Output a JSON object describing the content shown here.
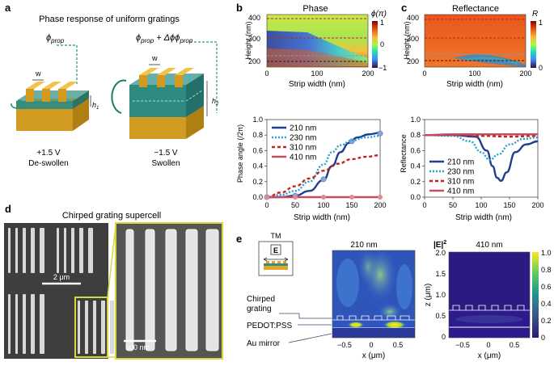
{
  "panels": {
    "a": {
      "letter": "a",
      "title": "Phase response of uniform gratings",
      "phi_prop": "ϕ",
      "phi_prop_sub": "prop",
      "delta_phi": " + Δϕ",
      "w_label": "w",
      "h1": "h",
      "h1_sub": "1",
      "h2": "h",
      "h2_sub": "2",
      "left_voltage": "+1.5 V",
      "left_state": "De-swollen",
      "right_voltage": "−1.5 V",
      "right_state": "Swollen",
      "colors": {
        "gold": "#e0a526",
        "gold_dark": "#b07f12",
        "pedot": "#3c8c7c",
        "arrow": "#2a8f88"
      }
    },
    "b": {
      "letter": "b",
      "heat_title": "Phase",
      "colorbar_label": "ϕ(π)",
      "colorbar_ticks": [
        "1",
        "0",
        "−1"
      ],
      "heat_ylabel": "Height (nm)",
      "heat_xlabel": "Strip width (nm)",
      "heat_xticks": [
        "0",
        "100",
        "200"
      ],
      "heat_yticks": [
        "400",
        "300",
        "200"
      ],
      "line_ylabel": "Phase angle (/2π)",
      "line_xlabel": "Strip width (nm)"
    },
    "c": {
      "letter": "c",
      "heat_title": "Reflectance",
      "colorbar_label": "R",
      "colorbar_ticks": [
        "1",
        "0"
      ],
      "heat_ylabel": "Height (nm)",
      "heat_xlabel": "Strip width (nm)",
      "heat_xticks": [
        "0",
        "100",
        "200"
      ],
      "heat_yticks": [
        "400",
        "300",
        "200"
      ],
      "line_ylabel": "Reflectance",
      "line_xlabel": "Strip width (nm)"
    },
    "d": {
      "letter": "d",
      "title": "Chirped grating supercell",
      "scale_left": "2 μm",
      "scale_right": "500 nm"
    },
    "e": {
      "letter": "e",
      "tm_label": "TM",
      "e_field": "E",
      "map_left_title": "210 nm",
      "map_right_title": "410 nm",
      "label_grating": "Chirped\ngrating",
      "label_grating_1": "Chirped",
      "label_grating_2": "grating",
      "label_pedot": "PEDOT:PSS",
      "label_mirror": "Au mirror",
      "xlabel": "x (μm)",
      "ylabel": "z (μm)",
      "xticks": [
        "−0.5",
        "0",
        "0.5"
      ],
      "yticks": [
        "2.0",
        "1.5",
        "1.0",
        "0.5",
        "0"
      ],
      "colorbar_label": "|E|",
      "colorbar_sup": "2",
      "colorbar_ticks": [
        "1.0",
        "0.8",
        "0.6",
        "0.4",
        "0.2",
        "0"
      ]
    }
  },
  "chart_data": [
    {
      "type": "line",
      "panel": "b",
      "xlabel": "Strip width (nm)",
      "ylabel": "Phase angle (/2π)",
      "xlim": [
        0,
        200
      ],
      "ylim": [
        0,
        1
      ],
      "xticks": [
        0,
        50,
        100,
        150,
        200
      ],
      "yticks": [
        0,
        0.2,
        0.4,
        0.6,
        0.8,
        1.0
      ],
      "legend": "top-left",
      "series": [
        {
          "name": "210 nm",
          "color": "#1f3f8f",
          "dash": "solid",
          "x": [
            0,
            25,
            50,
            75,
            100,
            115,
            130,
            145,
            160,
            180,
            200
          ],
          "y": [
            0.0,
            0.0,
            0.02,
            0.08,
            0.22,
            0.4,
            0.58,
            0.7,
            0.77,
            0.81,
            0.83
          ],
          "markers_x": [
            0,
            50,
            100,
            150,
            200
          ],
          "markers_y": [
            0.0,
            0.02,
            0.23,
            0.72,
            0.82
          ]
        },
        {
          "name": "230 nm",
          "color": "#2a9fd0",
          "dash": "2,2",
          "x": [
            0,
            25,
            50,
            75,
            100,
            115,
            130,
            150,
            175,
            200
          ],
          "y": [
            0.0,
            0.03,
            0.08,
            0.2,
            0.42,
            0.58,
            0.67,
            0.73,
            0.77,
            0.79
          ]
        },
        {
          "name": "310 nm",
          "color": "#c0241c",
          "dash": "4,3",
          "x": [
            0,
            25,
            50,
            75,
            100,
            125,
            150,
            175,
            200
          ],
          "y": [
            0.0,
            0.06,
            0.14,
            0.24,
            0.34,
            0.43,
            0.49,
            0.52,
            0.54
          ]
        },
        {
          "name": "410 nm",
          "color": "#c84a60",
          "dash": "solid",
          "x": [
            0,
            50,
            100,
            150,
            200
          ],
          "y": [
            0.0,
            0.0,
            0.0,
            0.0,
            0.0
          ]
        }
      ]
    },
    {
      "type": "line",
      "panel": "c",
      "xlabel": "Strip width (nm)",
      "ylabel": "Reflectance",
      "xlim": [
        0,
        200
      ],
      "ylim": [
        0,
        1
      ],
      "xticks": [
        0,
        50,
        100,
        150,
        200
      ],
      "yticks": [
        0,
        0.2,
        0.4,
        0.6,
        0.8,
        1.0
      ],
      "legend": "bottom-left",
      "series": [
        {
          "name": "210 nm",
          "color": "#1f3f8f",
          "dash": "solid",
          "x": [
            0,
            50,
            90,
            110,
            120,
            128,
            135,
            145,
            160,
            180,
            200
          ],
          "y": [
            0.8,
            0.8,
            0.78,
            0.6,
            0.4,
            0.25,
            0.21,
            0.32,
            0.58,
            0.68,
            0.72
          ]
        },
        {
          "name": "230 nm",
          "color": "#2a9fd0",
          "dash": "2,2",
          "x": [
            0,
            50,
            80,
            100,
            115,
            130,
            150,
            175,
            200
          ],
          "y": [
            0.8,
            0.79,
            0.72,
            0.58,
            0.48,
            0.55,
            0.68,
            0.75,
            0.77
          ]
        },
        {
          "name": "310 nm",
          "color": "#c0241c",
          "dash": "4,3",
          "x": [
            0,
            50,
            100,
            150,
            200
          ],
          "y": [
            0.8,
            0.8,
            0.79,
            0.78,
            0.79
          ]
        },
        {
          "name": "410 nm",
          "color": "#c84a60",
          "dash": "solid",
          "x": [
            0,
            50,
            100,
            150,
            200
          ],
          "y": [
            0.8,
            0.81,
            0.81,
            0.81,
            0.81
          ]
        }
      ]
    }
  ]
}
